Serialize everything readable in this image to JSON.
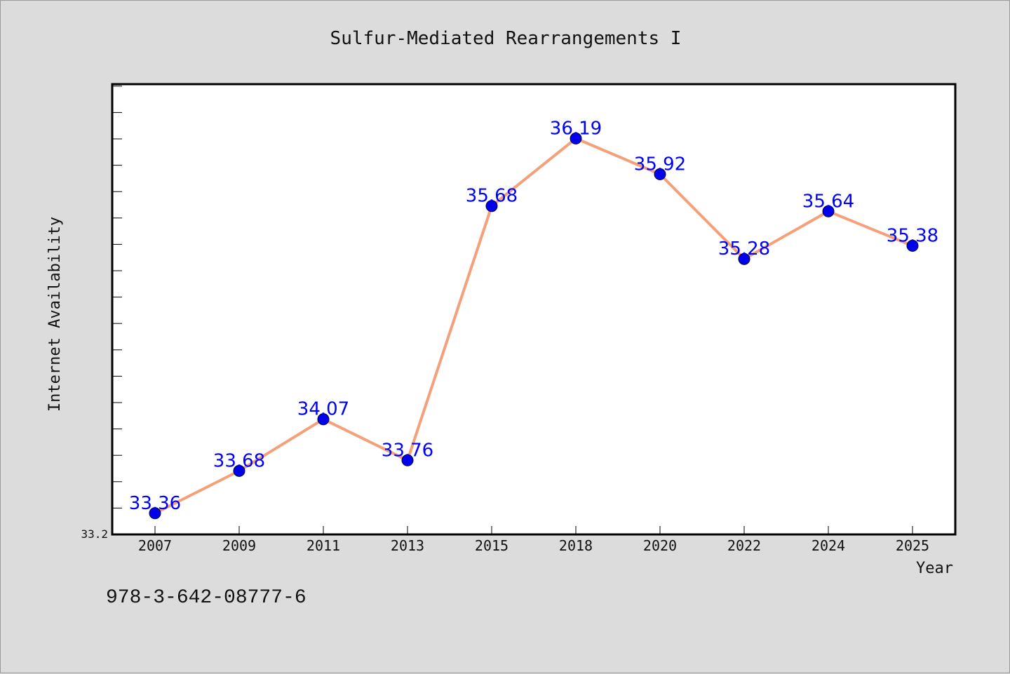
{
  "chart_data": {
    "type": "line",
    "title": "Sulfur-Mediated Rearrangements I",
    "xlabel": "Year",
    "ylabel": "Internet Availability",
    "categories": [
      "2007",
      "2009",
      "2011",
      "2013",
      "2015",
      "2018",
      "2020",
      "2022",
      "2024",
      "2025"
    ],
    "series": [
      {
        "values": [
          33.36,
          33.68,
          34.07,
          33.76,
          35.68,
          36.19,
          35.92,
          35.28,
          35.64,
          35.38
        ]
      }
    ],
    "ylim": [
      33.2,
      36.6
    ],
    "y_min_label": "33.2",
    "grid": false,
    "colors": {
      "line": "#f4a07a",
      "marker": "#0000ee",
      "data_label": "#0000ff",
      "plot_background": "#ffffff",
      "page_background": "#dcdcdc"
    }
  },
  "footer": {
    "isbn": "978-3-642-08777-6"
  }
}
